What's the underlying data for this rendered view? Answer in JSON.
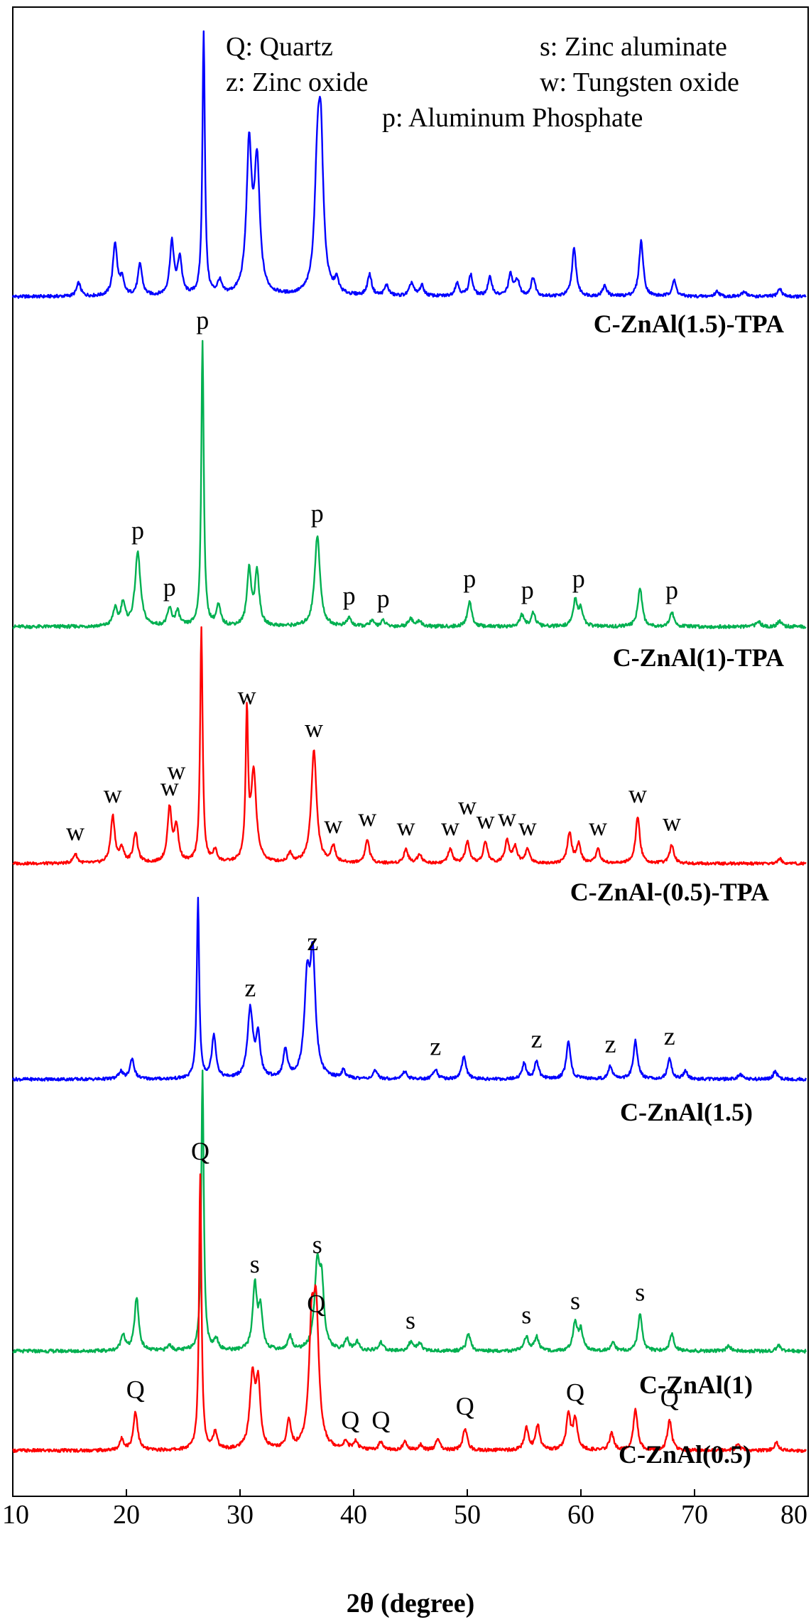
{
  "chart_data": {
    "type": "line",
    "title": "",
    "xlabel": "2θ (degree)",
    "ylabel": "",
    "xlim": [
      10,
      80
    ],
    "x_ticks": [
      10,
      20,
      30,
      40,
      50,
      60,
      70,
      80
    ],
    "grid": false,
    "legend": {
      "placement": "top-right",
      "entries": [
        "Q: Quartz",
        "s: Zinc aluminate",
        "z: Zinc oxide",
        "w: Tungsten oxide",
        "p: Aluminum Phosphate"
      ]
    },
    "series": [
      {
        "name": "C-ZnAl(1.5)-TPA",
        "color": "#0000ff",
        "peaks": [
          [
            15.8,
            0.05
          ],
          [
            19.0,
            0.2
          ],
          [
            19.6,
            0.06
          ],
          [
            21.2,
            0.12
          ],
          [
            24.0,
            0.2
          ],
          [
            24.7,
            0.14
          ],
          [
            26.8,
            1.0
          ],
          [
            28.2,
            0.05
          ],
          [
            30.8,
            0.55
          ],
          [
            31.5,
            0.48
          ],
          [
            36.8,
            0.4
          ],
          [
            37.1,
            0.55
          ],
          [
            38.5,
            0.05
          ],
          [
            41.4,
            0.08
          ],
          [
            42.9,
            0.04
          ],
          [
            45.1,
            0.05
          ],
          [
            46.0,
            0.04
          ],
          [
            49.1,
            0.05
          ],
          [
            50.3,
            0.08
          ],
          [
            52.0,
            0.07
          ],
          [
            53.8,
            0.08
          ],
          [
            54.4,
            0.06
          ],
          [
            55.8,
            0.07
          ],
          [
            59.4,
            0.18
          ],
          [
            62.1,
            0.04
          ],
          [
            65.3,
            0.21
          ],
          [
            68.2,
            0.06
          ],
          [
            72.0,
            0.02
          ],
          [
            74.4,
            0.02
          ],
          [
            77.5,
            0.03
          ]
        ],
        "annotations": []
      },
      {
        "name": "C-ZnAl(1)-TPA",
        "color": "#00b050",
        "peaks": [
          [
            19.0,
            0.06
          ],
          [
            19.7,
            0.08
          ],
          [
            21.0,
            0.26
          ],
          [
            23.8,
            0.06
          ],
          [
            24.5,
            0.05
          ],
          [
            26.7,
            1.0
          ],
          [
            28.1,
            0.07
          ],
          [
            30.8,
            0.2
          ],
          [
            31.5,
            0.19
          ],
          [
            36.8,
            0.32
          ],
          [
            39.6,
            0.03
          ],
          [
            41.6,
            0.02
          ],
          [
            42.6,
            0.02
          ],
          [
            45.0,
            0.03
          ],
          [
            45.8,
            0.02
          ],
          [
            50.2,
            0.09
          ],
          [
            54.8,
            0.04
          ],
          [
            55.8,
            0.05
          ],
          [
            59.5,
            0.09
          ],
          [
            60.0,
            0.06
          ],
          [
            65.2,
            0.14
          ],
          [
            68.0,
            0.05
          ],
          [
            75.6,
            0.02
          ],
          [
            77.5,
            0.02
          ]
        ],
        "annotations": [
          {
            "text": "p",
            "x": 26.7,
            "y": 1.0
          },
          {
            "text": "p",
            "x": 21.0,
            "y": 0.26
          },
          {
            "text": "p",
            "x": 23.8,
            "y": 0.06
          },
          {
            "text": "p",
            "x": 36.8,
            "y": 0.32
          },
          {
            "text": "p",
            "x": 39.6,
            "y": 0.03
          },
          {
            "text": "p",
            "x": 42.6,
            "y": 0.02
          },
          {
            "text": "p",
            "x": 50.2,
            "y": 0.09
          },
          {
            "text": "p",
            "x": 55.3,
            "y": 0.05
          },
          {
            "text": "p",
            "x": 59.8,
            "y": 0.09
          },
          {
            "text": "p",
            "x": 68.0,
            "y": 0.05
          }
        ]
      },
      {
        "name": "C-ZnAl-(0.5)-TPA",
        "color": "#ff0000",
        "peaks": [
          [
            15.5,
            0.04
          ],
          [
            18.8,
            0.2
          ],
          [
            19.6,
            0.06
          ],
          [
            20.8,
            0.13
          ],
          [
            23.8,
            0.23
          ],
          [
            24.4,
            0.15
          ],
          [
            26.6,
            1.0
          ],
          [
            27.8,
            0.05
          ],
          [
            30.6,
            0.62
          ],
          [
            31.2,
            0.38
          ],
          [
            34.4,
            0.04
          ],
          [
            36.5,
            0.48
          ],
          [
            38.2,
            0.07
          ],
          [
            41.2,
            0.1
          ],
          [
            44.6,
            0.06
          ],
          [
            45.8,
            0.04
          ],
          [
            48.5,
            0.06
          ],
          [
            50.0,
            0.09
          ],
          [
            51.6,
            0.09
          ],
          [
            53.5,
            0.1
          ],
          [
            54.2,
            0.07
          ],
          [
            55.3,
            0.06
          ],
          [
            59.0,
            0.13
          ],
          [
            59.8,
            0.08
          ],
          [
            61.5,
            0.06
          ],
          [
            65.0,
            0.2
          ],
          [
            68.0,
            0.08
          ],
          [
            77.5,
            0.02
          ]
        ],
        "annotations": [
          {
            "text": "w",
            "x": 15.5,
            "y": 0.04
          },
          {
            "text": "w",
            "x": 18.8,
            "y": 0.2
          },
          {
            "text": "w",
            "x": 23.8,
            "y": 0.23
          },
          {
            "text": "w",
            "x": 24.4,
            "y": 0.3
          },
          {
            "text": "w",
            "x": 30.6,
            "y": 0.62
          },
          {
            "text": "w",
            "x": 36.5,
            "y": 0.48
          },
          {
            "text": "w",
            "x": 38.2,
            "y": 0.07
          },
          {
            "text": "w",
            "x": 41.2,
            "y": 0.1
          },
          {
            "text": "w",
            "x": 44.6,
            "y": 0.06
          },
          {
            "text": "w",
            "x": 48.5,
            "y": 0.06
          },
          {
            "text": "w",
            "x": 50.0,
            "y": 0.15
          },
          {
            "text": "w",
            "x": 51.6,
            "y": 0.09
          },
          {
            "text": "w",
            "x": 53.5,
            "y": 0.1
          },
          {
            "text": "w",
            "x": 55.3,
            "y": 0.06
          },
          {
            "text": "w",
            "x": 61.5,
            "y": 0.06
          },
          {
            "text": "w",
            "x": 65.0,
            "y": 0.2
          },
          {
            "text": "w",
            "x": 68.0,
            "y": 0.08
          }
        ]
      },
      {
        "name": "C-ZnAl(1.5)",
        "color": "#0000ff",
        "peaks": [
          [
            19.5,
            0.03
          ],
          [
            20.5,
            0.08
          ],
          [
            26.3,
            0.7
          ],
          [
            27.7,
            0.17
          ],
          [
            30.9,
            0.27
          ],
          [
            31.6,
            0.16
          ],
          [
            34.0,
            0.11
          ],
          [
            35.9,
            0.35
          ],
          [
            36.4,
            0.45
          ],
          [
            39.1,
            0.03
          ],
          [
            41.9,
            0.03
          ],
          [
            44.5,
            0.03
          ],
          [
            47.2,
            0.04
          ],
          [
            49.7,
            0.09
          ],
          [
            55.0,
            0.06
          ],
          [
            56.1,
            0.07
          ],
          [
            58.9,
            0.15
          ],
          [
            62.6,
            0.05
          ],
          [
            64.8,
            0.15
          ],
          [
            67.8,
            0.08
          ],
          [
            69.2,
            0.03
          ],
          [
            74.0,
            0.02
          ],
          [
            77.1,
            0.03
          ]
        ],
        "annotations": [
          {
            "text": "z",
            "x": 30.9,
            "y": 0.27
          },
          {
            "text": "z",
            "x": 36.4,
            "y": 0.45
          },
          {
            "text": "z",
            "x": 47.2,
            "y": 0.04
          },
          {
            "text": "z",
            "x": 56.1,
            "y": 0.07
          },
          {
            "text": "z",
            "x": 62.6,
            "y": 0.05
          },
          {
            "text": "z",
            "x": 67.8,
            "y": 0.08
          }
        ]
      },
      {
        "name": "C-ZnAl(1)",
        "color": "#00b050",
        "peaks": [
          [
            19.7,
            0.06
          ],
          [
            20.9,
            0.19
          ],
          [
            23.8,
            0.02
          ],
          [
            26.7,
            1.0
          ],
          [
            27.9,
            0.04
          ],
          [
            31.3,
            0.23
          ],
          [
            31.8,
            0.14
          ],
          [
            34.4,
            0.05
          ],
          [
            36.8,
            0.3
          ],
          [
            37.2,
            0.2
          ],
          [
            39.4,
            0.04
          ],
          [
            40.3,
            0.03
          ],
          [
            42.4,
            0.03
          ],
          [
            45.0,
            0.03
          ],
          [
            45.8,
            0.03
          ],
          [
            50.1,
            0.06
          ],
          [
            55.2,
            0.05
          ],
          [
            56.1,
            0.05
          ],
          [
            59.5,
            0.1
          ],
          [
            60.0,
            0.07
          ],
          [
            62.8,
            0.03
          ],
          [
            65.2,
            0.13
          ],
          [
            68.0,
            0.06
          ],
          [
            73.0,
            0.02
          ],
          [
            77.4,
            0.02
          ]
        ],
        "annotations": [
          {
            "text": "s",
            "x": 31.3,
            "y": 0.23
          },
          {
            "text": "s",
            "x": 36.8,
            "y": 0.3
          },
          {
            "text": "s",
            "x": 45.0,
            "y": 0.03
          },
          {
            "text": "s",
            "x": 55.2,
            "y": 0.05
          },
          {
            "text": "s",
            "x": 59.5,
            "y": 0.1
          },
          {
            "text": "s",
            "x": 65.2,
            "y": 0.13
          }
        ]
      },
      {
        "name": "C-ZnAl(0.5)",
        "color": "#ff0000",
        "peaks": [
          [
            19.6,
            0.04
          ],
          [
            20.8,
            0.14
          ],
          [
            26.5,
            1.0
          ],
          [
            27.8,
            0.06
          ],
          [
            31.1,
            0.26
          ],
          [
            31.6,
            0.22
          ],
          [
            34.3,
            0.1
          ],
          [
            36.3,
            0.4
          ],
          [
            36.7,
            0.45
          ],
          [
            39.3,
            0.03
          ],
          [
            40.2,
            0.03
          ],
          [
            42.4,
            0.03
          ],
          [
            44.5,
            0.03
          ],
          [
            45.9,
            0.02
          ],
          [
            47.4,
            0.04
          ],
          [
            49.8,
            0.08
          ],
          [
            55.2,
            0.08
          ],
          [
            56.2,
            0.09
          ],
          [
            58.9,
            0.13
          ],
          [
            59.5,
            0.11
          ],
          [
            62.7,
            0.06
          ],
          [
            64.8,
            0.15
          ],
          [
            67.8,
            0.11
          ],
          [
            73.8,
            0.02
          ],
          [
            77.2,
            0.03
          ]
        ],
        "annotations": [
          {
            "text": "Q",
            "x": 26.5,
            "y": 1.0
          },
          {
            "text": "Q",
            "x": 20.8,
            "y": 0.14
          },
          {
            "text": "Q",
            "x": 36.7,
            "y": 0.45
          },
          {
            "text": "Q",
            "x": 39.7,
            "y": 0.03
          },
          {
            "text": "Q",
            "x": 42.4,
            "y": 0.03
          },
          {
            "text": "Q",
            "x": 49.8,
            "y": 0.08
          },
          {
            "text": "Q",
            "x": 59.5,
            "y": 0.13
          },
          {
            "text": "Q",
            "x": 67.8,
            "y": 0.11
          }
        ]
      }
    ]
  }
}
